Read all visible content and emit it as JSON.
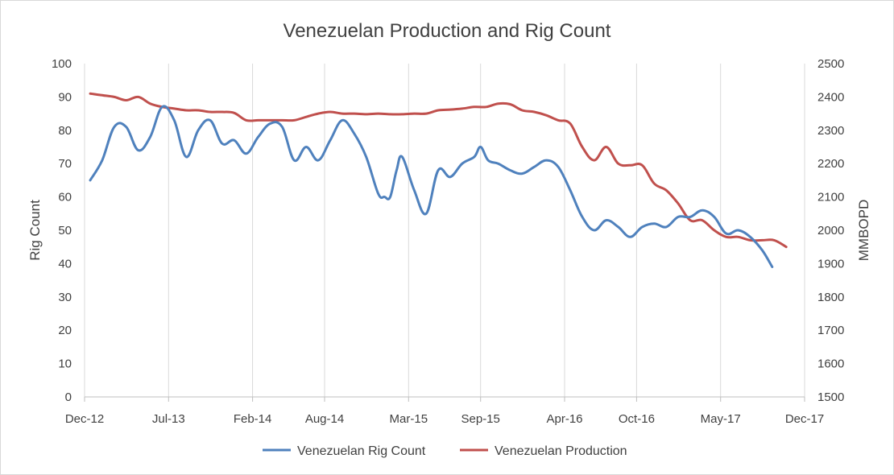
{
  "chart_data": {
    "type": "line",
    "title": "Venezuelan Production and Rig Count",
    "y_left_label": "Rig Count",
    "y_right_label": "MMBOPD",
    "y_left_range": [
      0,
      100
    ],
    "y_left_ticks": [
      "0",
      "10",
      "20",
      "30",
      "40",
      "50",
      "60",
      "70",
      "80",
      "90",
      "100"
    ],
    "y_right_range": [
      1500,
      2500
    ],
    "y_right_ticks": [
      "1500",
      "1600",
      "1700",
      "1800",
      "1900",
      "2000",
      "2100",
      "2200",
      "2300",
      "2400",
      "2500"
    ],
    "x_range_months": [
      "Dec-12",
      "Dec-17"
    ],
    "x_ticks": [
      "Dec-12",
      "Jul-13",
      "Feb-14",
      "Aug-14",
      "Mar-15",
      "Sep-15",
      "Apr-16",
      "Oct-16",
      "May-17",
      "Dec-17"
    ],
    "grid": "vertical",
    "legend_position": "bottom",
    "series": [
      {
        "name": "Venezuelan Rig Count",
        "axis": "left",
        "color": "#4f81bd",
        "points": [
          [
            "2012-12-15",
            65
          ],
          [
            "2013-01-15",
            71
          ],
          [
            "2013-02-15",
            81
          ],
          [
            "2013-03-15",
            81
          ],
          [
            "2013-04-15",
            74
          ],
          [
            "2013-05-15",
            78
          ],
          [
            "2013-06-15",
            87
          ],
          [
            "2013-07-15",
            83
          ],
          [
            "2013-08-15",
            72
          ],
          [
            "2013-09-15",
            80
          ],
          [
            "2013-10-15",
            83
          ],
          [
            "2013-11-15",
            76
          ],
          [
            "2013-12-15",
            77
          ],
          [
            "2014-01-15",
            73
          ],
          [
            "2014-02-15",
            78
          ],
          [
            "2014-03-15",
            82
          ],
          [
            "2014-04-15",
            81
          ],
          [
            "2014-05-15",
            71
          ],
          [
            "2014-06-15",
            75
          ],
          [
            "2014-07-15",
            71
          ],
          [
            "2014-08-15",
            77
          ],
          [
            "2014-09-15",
            83
          ],
          [
            "2014-10-15",
            79
          ],
          [
            "2014-11-15",
            72
          ],
          [
            "2014-12-15",
            61
          ],
          [
            "2015-01-01",
            60
          ],
          [
            "2015-01-15",
            60
          ],
          [
            "2015-02-01",
            68
          ],
          [
            "2015-02-15",
            72
          ],
          [
            "2015-03-15",
            62
          ],
          [
            "2015-04-15",
            55
          ],
          [
            "2015-05-15",
            68
          ],
          [
            "2015-06-15",
            66
          ],
          [
            "2015-07-15",
            70
          ],
          [
            "2015-08-15",
            72
          ],
          [
            "2015-09-01",
            75
          ],
          [
            "2015-09-20",
            71
          ],
          [
            "2015-10-15",
            70
          ],
          [
            "2015-11-15",
            68
          ],
          [
            "2015-12-15",
            67
          ],
          [
            "2016-01-15",
            69
          ],
          [
            "2016-02-15",
            71
          ],
          [
            "2016-03-15",
            69
          ],
          [
            "2016-04-15",
            62
          ],
          [
            "2016-05-15",
            54
          ],
          [
            "2016-06-15",
            50
          ],
          [
            "2016-07-15",
            53
          ],
          [
            "2016-08-15",
            51
          ],
          [
            "2016-09-15",
            48
          ],
          [
            "2016-10-15",
            51
          ],
          [
            "2016-11-15",
            52
          ],
          [
            "2016-12-15",
            51
          ],
          [
            "2017-01-15",
            54
          ],
          [
            "2017-02-15",
            54
          ],
          [
            "2017-03-15",
            56
          ],
          [
            "2017-04-15",
            54
          ],
          [
            "2017-05-15",
            49
          ],
          [
            "2017-06-15",
            50
          ],
          [
            "2017-07-15",
            48
          ],
          [
            "2017-08-15",
            44
          ],
          [
            "2017-09-10",
            39
          ]
        ]
      },
      {
        "name": "Venezuelan Production",
        "axis": "right",
        "color": "#c0504d",
        "points": [
          [
            "2012-12-15",
            2410
          ],
          [
            "2013-01-15",
            2405
          ],
          [
            "2013-02-15",
            2400
          ],
          [
            "2013-03-15",
            2390
          ],
          [
            "2013-04-15",
            2400
          ],
          [
            "2013-05-15",
            2380
          ],
          [
            "2013-06-15",
            2370
          ],
          [
            "2013-07-15",
            2365
          ],
          [
            "2013-08-15",
            2360
          ],
          [
            "2013-09-15",
            2360
          ],
          [
            "2013-10-15",
            2355
          ],
          [
            "2013-11-15",
            2355
          ],
          [
            "2013-12-15",
            2352
          ],
          [
            "2014-01-15",
            2330
          ],
          [
            "2014-02-15",
            2330
          ],
          [
            "2014-03-15",
            2330
          ],
          [
            "2014-04-15",
            2330
          ],
          [
            "2014-05-15",
            2330
          ],
          [
            "2014-06-15",
            2340
          ],
          [
            "2014-07-15",
            2350
          ],
          [
            "2014-08-15",
            2355
          ],
          [
            "2014-09-15",
            2350
          ],
          [
            "2014-10-15",
            2350
          ],
          [
            "2014-11-15",
            2348
          ],
          [
            "2014-12-15",
            2350
          ],
          [
            "2015-01-15",
            2348
          ],
          [
            "2015-02-15",
            2348
          ],
          [
            "2015-03-15",
            2350
          ],
          [
            "2015-04-15",
            2350
          ],
          [
            "2015-05-15",
            2360
          ],
          [
            "2015-06-15",
            2362
          ],
          [
            "2015-07-15",
            2365
          ],
          [
            "2015-08-15",
            2370
          ],
          [
            "2015-09-15",
            2370
          ],
          [
            "2015-10-15",
            2380
          ],
          [
            "2015-11-15",
            2378
          ],
          [
            "2015-12-15",
            2360
          ],
          [
            "2016-01-15",
            2355
          ],
          [
            "2016-02-15",
            2345
          ],
          [
            "2016-03-15",
            2330
          ],
          [
            "2016-04-15",
            2320
          ],
          [
            "2016-05-15",
            2250
          ],
          [
            "2016-06-15",
            2210
          ],
          [
            "2016-07-15",
            2250
          ],
          [
            "2016-08-15",
            2200
          ],
          [
            "2016-09-15",
            2195
          ],
          [
            "2016-10-15",
            2195
          ],
          [
            "2016-11-15",
            2140
          ],
          [
            "2016-12-15",
            2120
          ],
          [
            "2017-01-15",
            2080
          ],
          [
            "2017-02-15",
            2030
          ],
          [
            "2017-03-15",
            2030
          ],
          [
            "2017-04-15",
            2000
          ],
          [
            "2017-05-15",
            1980
          ],
          [
            "2017-06-15",
            1980
          ],
          [
            "2017-07-15",
            1970
          ],
          [
            "2017-08-15",
            1970
          ],
          [
            "2017-09-15",
            1970
          ],
          [
            "2017-10-15",
            1950
          ]
        ]
      }
    ]
  }
}
